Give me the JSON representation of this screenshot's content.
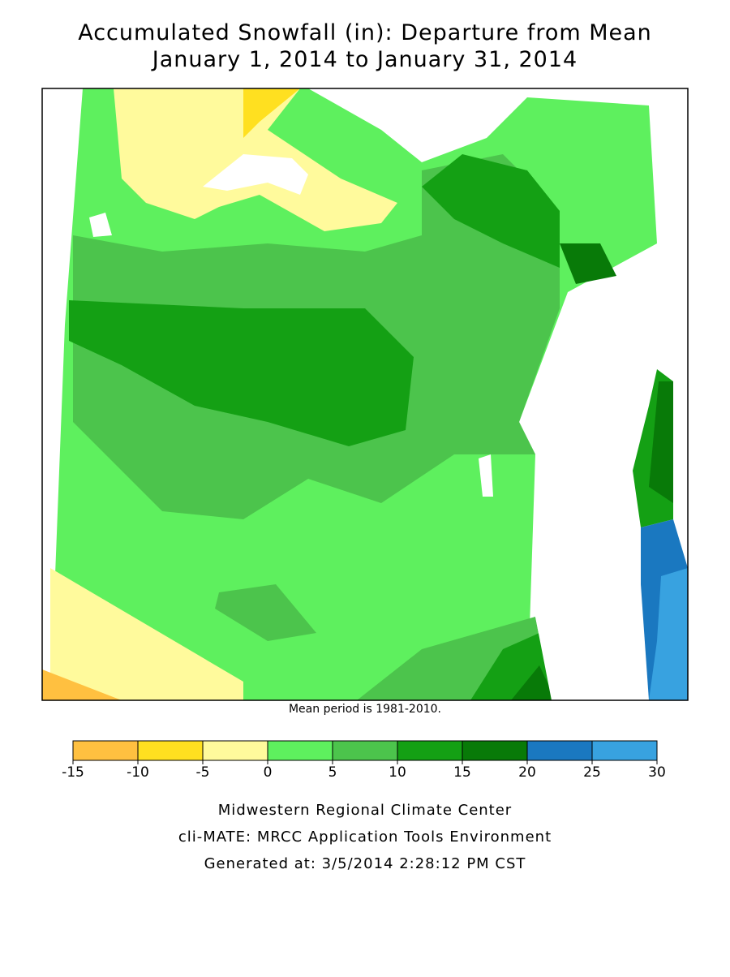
{
  "title": [
    "Accumulated Snowfall (in): Departure from Mean",
    "January 1, 2014 to January 31, 2014"
  ],
  "note": "Mean period is 1981-2010.",
  "legend": {
    "bins": [
      -15,
      -10,
      -5,
      0,
      5,
      10,
      15,
      20,
      25,
      30
    ],
    "colors": [
      "#ffc040",
      "#ffe020",
      "#fffa9c",
      "#5ef05e",
      "#4cc44c",
      "#14a014",
      "#087a08",
      "#1a78c0",
      "#38a2e0"
    ]
  },
  "footer": [
    "Midwestern Regional Climate Center",
    "cli-MATE: MRCC Application Tools Environment",
    "Generated at: 3/5/2014 2:28:12 PM CST"
  ]
}
